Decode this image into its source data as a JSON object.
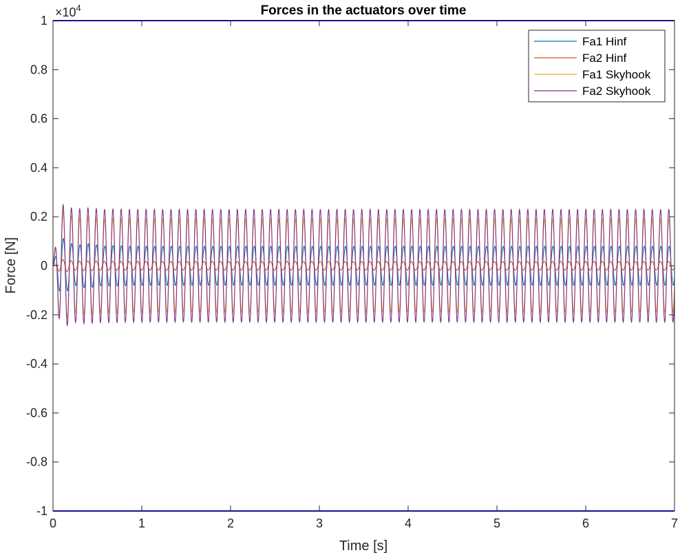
{
  "chart_data": {
    "type": "line",
    "title": "Forces in the actuators over time",
    "xlabel": "Time [s]",
    "ylabel": "Force [N]",
    "exponent_label": {
      "base": "×10",
      "power": "4"
    },
    "xlim": [
      0,
      7
    ],
    "ylim": [
      -1,
      1
    ],
    "y_scale_factor": 10000,
    "grid": false,
    "legend_position": "top-right",
    "x_ticks": [
      "0",
      "1",
      "2",
      "3",
      "4",
      "5",
      "6",
      "7"
    ],
    "y_ticks": [
      "-1",
      "-0.8",
      "-0.6",
      "-0.4",
      "-0.2",
      "0",
      "0.2",
      "0.4",
      "0.6",
      "0.8",
      "1"
    ],
    "x_tick_values": [
      0,
      1,
      2,
      3,
      4,
      5,
      6,
      7
    ],
    "y_tick_values": [
      -1,
      -0.8,
      -0.6,
      -0.4,
      -0.2,
      0,
      0.2,
      0.4,
      0.6,
      0.8,
      1
    ],
    "oscillation_frequency_hz": 10.7,
    "series": [
      {
        "name": "Fa1 Hinf",
        "color": "#0072BD",
        "steady_amplitude": 0.08,
        "peak_transient": 0.13,
        "phase": 0.0
      },
      {
        "name": "Fa2 Hinf",
        "color": "#D95319",
        "steady_amplitude": 0.018,
        "peak_transient": 0.03,
        "phase": 0.3
      },
      {
        "name": "Fa1 Skyhook",
        "color": "#EDB120",
        "steady_amplitude": 0.19,
        "peak_transient": 0.24,
        "phase": 0.15
      },
      {
        "name": "Fa2 Skyhook",
        "color": "#7E2F8E",
        "steady_amplitude": 0.23,
        "peak_transient": 0.26,
        "phase": 0.2
      }
    ]
  }
}
